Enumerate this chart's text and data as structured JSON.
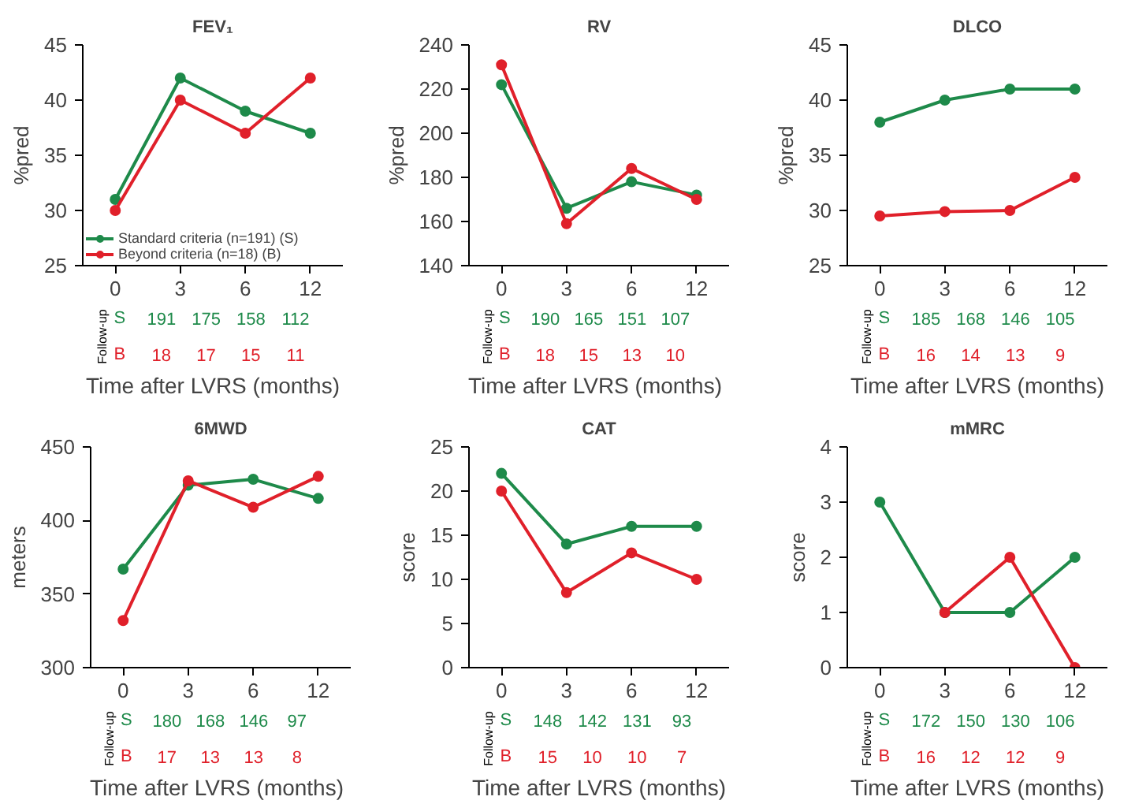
{
  "chart_data": [
    {
      "type": "line",
      "title": "FEV₁",
      "ylabel": "%pred",
      "xlabel": "Time after LVRS (months)",
      "categories": [
        "0",
        "3",
        "6",
        "12"
      ],
      "ylim": [
        25,
        45
      ],
      "yticks": [
        25,
        30,
        35,
        40,
        45
      ],
      "grid": false,
      "marker": "circle",
      "legend": "bottom left",
      "series": [
        {
          "name": "Standard criteria (n=191) (S)",
          "color": "#1e8a4a",
          "values": [
            31,
            42,
            39,
            37
          ]
        },
        {
          "name": "Beyond criteria (n=18) (B)",
          "color": "#e0202a",
          "values": [
            30,
            40,
            37,
            42
          ]
        }
      ],
      "annotations": [
        "Follow-up",
        "S",
        "B",
        "191",
        "175",
        "158",
        "112",
        "18",
        "17",
        "15",
        "11"
      ]
    },
    {
      "type": "line",
      "title": "RV",
      "ylabel": "%pred",
      "xlabel": "Time after LVRS (months)",
      "categories": [
        "0",
        "3",
        "6",
        "12"
      ],
      "ylim": [
        140,
        240
      ],
      "yticks": [
        140,
        160,
        180,
        200,
        220,
        240
      ],
      "grid": false,
      "marker": "circle",
      "series": [
        {
          "color": "#1e8a4a",
          "values": [
            222,
            166,
            178,
            172
          ]
        },
        {
          "color": "#e0202a",
          "values": [
            231,
            159,
            184,
            170
          ]
        }
      ],
      "annotations": [
        "Follow-up",
        "S",
        "B",
        "190",
        "165",
        "151",
        "107",
        "18",
        "15",
        "13",
        "10"
      ]
    },
    {
      "type": "line",
      "title": "DLCO",
      "ylabel": "%pred",
      "xlabel": "Time after LVRS (months)",
      "categories": [
        "0",
        "3",
        "6",
        "12"
      ],
      "ylim": [
        25,
        45
      ],
      "yticks": [
        25,
        30,
        35,
        40,
        45
      ],
      "grid": false,
      "marker": "circle",
      "series": [
        {
          "color": "#1e8a4a",
          "values": [
            38,
            40,
            41,
            41
          ]
        },
        {
          "color": "#e0202a",
          "values": [
            29.5,
            29.9,
            30,
            33
          ]
        }
      ],
      "annotations": [
        "Follow-up",
        "S",
        "B",
        "185",
        "168",
        "146",
        "105",
        "16",
        "14",
        "13",
        "9"
      ]
    },
    {
      "type": "line",
      "title": "6MWD",
      "ylabel": "meters",
      "xlabel": "Time after LVRS (months)",
      "categories": [
        "0",
        "3",
        "6",
        "12"
      ],
      "ylim": [
        300,
        450
      ],
      "yticks": [
        300,
        350,
        400,
        450
      ],
      "grid": false,
      "marker": "circle",
      "series": [
        {
          "color": "#1e8a4a",
          "values": [
            367,
            424,
            428,
            415
          ]
        },
        {
          "color": "#e0202a",
          "values": [
            332,
            427,
            409,
            430
          ]
        }
      ],
      "annotations": [
        "Follow-up",
        "S",
        "B",
        "180",
        "168",
        "146",
        "97",
        "17",
        "13",
        "13",
        "8"
      ]
    },
    {
      "type": "line",
      "title": "CAT",
      "ylabel": "score",
      "xlabel": "Time after LVRS (months)",
      "categories": [
        "0",
        "3",
        "6",
        "12"
      ],
      "ylim": [
        0,
        25
      ],
      "yticks": [
        0,
        5,
        10,
        15,
        20,
        25
      ],
      "grid": false,
      "marker": "circle",
      "series": [
        {
          "color": "#1e8a4a",
          "values": [
            22,
            14,
            16,
            16
          ]
        },
        {
          "color": "#e0202a",
          "values": [
            20,
            8.5,
            13,
            10
          ]
        }
      ],
      "annotations": [
        "Follow-up",
        "S",
        "B",
        "148",
        "142",
        "131",
        "93",
        "15",
        "10",
        "10",
        "7"
      ]
    },
    {
      "type": "line",
      "title": "mMRC",
      "ylabel": "score",
      "xlabel": "Time after LVRS (months)",
      "categories": [
        "0",
        "3",
        "6",
        "12"
      ],
      "ylim": [
        0,
        4
      ],
      "yticks": [
        0,
        1,
        2,
        3,
        4
      ],
      "grid": false,
      "marker": "circle",
      "series": [
        {
          "color": "#1e8a4a",
          "values": [
            3,
            1,
            1,
            2
          ]
        },
        {
          "color": "#e0202a",
          "values": [
            null,
            1,
            2,
            0
          ]
        }
      ],
      "annotations": [
        "Follow-up",
        "S",
        "B",
        "172",
        "150",
        "130",
        "106",
        "16",
        "12",
        "12",
        "9"
      ]
    }
  ]
}
